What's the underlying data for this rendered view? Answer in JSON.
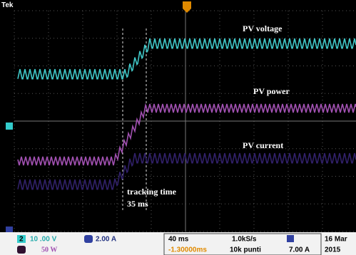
{
  "header": {
    "brand": "Tek"
  },
  "labels": {
    "voltage": "PV voltage",
    "power": "PV power",
    "current": "PV current",
    "tracking": "tracking time",
    "tracking_duration": "35 ms"
  },
  "status": {
    "ch2_badge": "2",
    "ch2_scale": "10 .00 V",
    "ch4_scale": "2.00 A",
    "math_scale": "50 W",
    "timebase": "40 ms",
    "sample_rate": "1.0kS/s",
    "trigger_pos": "-1.30000ms",
    "record_length": "10k punti",
    "trigger_level": "7.00 A",
    "date": "16 Mar",
    "year": "2015"
  }
}
